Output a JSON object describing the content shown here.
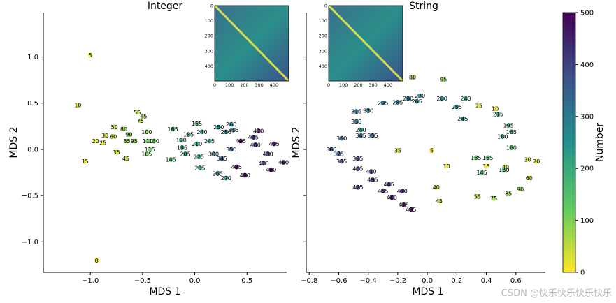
{
  "chart_data": [
    {
      "type": "scatter",
      "title": "Integer",
      "xlabel": "MDS 1",
      "ylabel": "MDS 2",
      "xlim": [
        -1.45,
        0.88
      ],
      "ylim": [
        -1.33,
        1.48
      ],
      "xticks": [
        -1.0,
        -0.5,
        0.0,
        0.5
      ],
      "xtick_labels": [
        "−1.0",
        "−0.5",
        "0.0",
        "0.5"
      ],
      "yticks": [
        -1.0,
        -0.5,
        0.0,
        0.5,
        1.0
      ],
      "ytick_labels": [
        "−1.0",
        "−0.5",
        "0.0",
        "0.5",
        "1.0"
      ],
      "point_labels": [
        {
          "x": -0.94,
          "y": -1.2,
          "label": "0"
        },
        {
          "x": -1.0,
          "y": 1.02,
          "label": "5"
        },
        {
          "x": -1.12,
          "y": 0.48,
          "label": "10"
        },
        {
          "x": -1.05,
          "y": -0.13,
          "label": "15"
        },
        {
          "x": -0.95,
          "y": 0.09,
          "label": "20"
        },
        {
          "x": -0.88,
          "y": 0.07,
          "label": "25"
        },
        {
          "x": -0.86,
          "y": 0.15,
          "label": "30"
        },
        {
          "x": -0.75,
          "y": -0.03,
          "label": "35"
        },
        {
          "x": -0.66,
          "y": -0.1,
          "label": "45"
        },
        {
          "x": -0.77,
          "y": 0.24,
          "label": "50"
        },
        {
          "x": -0.55,
          "y": 0.4,
          "label": "55"
        },
        {
          "x": -0.78,
          "y": 0.14,
          "label": "60"
        },
        {
          "x": -0.49,
          "y": 0.36,
          "label": "65"
        },
        {
          "x": -0.52,
          "y": 0.31,
          "label": "75"
        },
        {
          "x": -0.68,
          "y": 0.22,
          "label": "80"
        },
        {
          "x": -0.65,
          "y": 0.09,
          "label": "85"
        },
        {
          "x": -0.63,
          "y": 0.16,
          "label": "90"
        },
        {
          "x": -0.58,
          "y": 0.09,
          "label": "95"
        },
        {
          "x": -0.46,
          "y": 0.19,
          "label": "100"
        },
        {
          "x": -0.46,
          "y": -0.05,
          "label": "105"
        },
        {
          "x": -0.45,
          "y": 0.09,
          "label": "110"
        },
        {
          "x": -0.43,
          "y": 0.0,
          "label": "115"
        },
        {
          "x": -0.39,
          "y": 0.09,
          "label": "130"
        },
        {
          "x": -0.23,
          "y": -0.11,
          "label": "145"
        },
        {
          "x": -0.21,
          "y": 0.22,
          "label": "165"
        },
        {
          "x": 0.02,
          "y": 0.28,
          "label": "155"
        },
        {
          "x": -0.06,
          "y": 0.16,
          "label": "185"
        },
        {
          "x": -0.13,
          "y": 0.1,
          "label": "190"
        },
        {
          "x": -0.12,
          "y": 0.02,
          "label": "195"
        },
        {
          "x": 0.02,
          "y": 0.06,
          "label": "210"
        },
        {
          "x": -0.09,
          "y": -0.05,
          "label": "205"
        },
        {
          "x": 0.07,
          "y": 0.19,
          "label": "240"
        },
        {
          "x": 0.14,
          "y": 0.09,
          "label": "245"
        },
        {
          "x": 0.23,
          "y": 0.24,
          "label": "250"
        },
        {
          "x": 0.35,
          "y": 0.27,
          "label": "260"
        },
        {
          "x": 0.3,
          "y": 0.19,
          "label": "280"
        },
        {
          "x": 0.37,
          "y": 0.21,
          "label": "315"
        },
        {
          "x": 0.04,
          "y": -0.08,
          "label": "225"
        },
        {
          "x": 0.05,
          "y": -0.2,
          "label": "235"
        },
        {
          "x": 0.22,
          "y": -0.26,
          "label": "265"
        },
        {
          "x": 0.3,
          "y": -0.31,
          "label": "270"
        },
        {
          "x": 0.18,
          "y": -0.05,
          "label": "300"
        },
        {
          "x": 0.26,
          "y": -0.1,
          "label": "345"
        },
        {
          "x": 0.35,
          "y": 0.0,
          "label": "350"
        },
        {
          "x": 0.4,
          "y": -0.19,
          "label": "485"
        },
        {
          "x": 0.48,
          "y": -0.28,
          "label": "490"
        },
        {
          "x": 0.44,
          "y": 0.09,
          "label": "495"
        },
        {
          "x": 0.56,
          "y": 0.13,
          "label": "445"
        },
        {
          "x": 0.61,
          "y": 0.2,
          "label": "470"
        },
        {
          "x": 0.58,
          "y": 0.05,
          "label": "400"
        },
        {
          "x": 0.7,
          "y": -0.05,
          "label": "430"
        },
        {
          "x": 0.66,
          "y": -0.15,
          "label": "410"
        },
        {
          "x": 0.76,
          "y": 0.06,
          "label": "475"
        },
        {
          "x": 0.73,
          "y": -0.22,
          "label": "480"
        },
        {
          "x": 0.85,
          "y": -0.14,
          "label": "460"
        }
      ],
      "inset": {
        "xticks": [
          "0",
          "100",
          "200",
          "300",
          "400"
        ],
        "yticks": [
          "0",
          "100",
          "200",
          "300",
          "400"
        ]
      }
    },
    {
      "type": "scatter",
      "title": "String",
      "xlabel": "MDS 1",
      "ylabel": "MDS 2",
      "xlim": [
        -0.82,
        0.8
      ],
      "ylim": [
        -1.33,
        1.48
      ],
      "xticks": [
        -0.8,
        -0.6,
        -0.4,
        -0.2,
        0.0,
        0.2,
        0.4,
        0.6
      ],
      "xtick_labels": [
        "−0.8",
        "−0.6",
        "−0.4",
        "−0.2",
        "0.0",
        "0.2",
        "0.4",
        "0.6"
      ],
      "point_labels": [
        {
          "x": -0.1,
          "y": 0.78,
          "label": "80"
        },
        {
          "x": 0.11,
          "y": 0.76,
          "label": "95"
        },
        {
          "x": -0.2,
          "y": -0.01,
          "label": "35"
        },
        {
          "x": 0.03,
          "y": -0.01,
          "label": "5"
        },
        {
          "x": 0.13,
          "y": -0.18,
          "label": "10"
        },
        {
          "x": 0.4,
          "y": -0.18,
          "label": "15"
        },
        {
          "x": 0.53,
          "y": -0.19,
          "label": "40"
        },
        {
          "x": 0.68,
          "y": -0.11,
          "label": "30"
        },
        {
          "x": 0.74,
          "y": -0.13,
          "label": "20"
        },
        {
          "x": 0.69,
          "y": -0.31,
          "label": "60"
        },
        {
          "x": 0.63,
          "y": -0.43,
          "label": "90"
        },
        {
          "x": 0.55,
          "y": -0.48,
          "label": "85"
        },
        {
          "x": 0.45,
          "y": -0.53,
          "label": "75"
        },
        {
          "x": 0.34,
          "y": -0.51,
          "label": "55"
        },
        {
          "x": 0.06,
          "y": -0.41,
          "label": "40"
        },
        {
          "x": 0.08,
          "y": -0.56,
          "label": "45"
        },
        {
          "x": -0.13,
          "y": 0.55,
          "label": "290"
        },
        {
          "x": -0.2,
          "y": 0.51,
          "label": "285"
        },
        {
          "x": -0.05,
          "y": 0.58,
          "label": "270"
        },
        {
          "x": -0.3,
          "y": 0.5,
          "label": "295"
        },
        {
          "x": -0.07,
          "y": 0.52,
          "label": "265"
        },
        {
          "x": 0.1,
          "y": 0.55,
          "label": "260"
        },
        {
          "x": 0.26,
          "y": 0.55,
          "label": "240"
        },
        {
          "x": 0.2,
          "y": 0.46,
          "label": "255"
        },
        {
          "x": 0.35,
          "y": 0.47,
          "label": "25"
        },
        {
          "x": 0.46,
          "y": 0.44,
          "label": "10"
        },
        {
          "x": 0.48,
          "y": 0.38,
          "label": "215"
        },
        {
          "x": 0.24,
          "y": 0.33,
          "label": "245"
        },
        {
          "x": 0.55,
          "y": 0.26,
          "label": "195"
        },
        {
          "x": 0.57,
          "y": 0.19,
          "label": "165"
        },
        {
          "x": 0.51,
          "y": 0.14,
          "label": "180"
        },
        {
          "x": 0.57,
          "y": 0.02,
          "label": "160"
        },
        {
          "x": 0.41,
          "y": -0.09,
          "label": "155"
        },
        {
          "x": 0.33,
          "y": -0.09,
          "label": "135"
        },
        {
          "x": 0.37,
          "y": -0.25,
          "label": "145"
        },
        {
          "x": 0.52,
          "y": -0.22,
          "label": "150"
        },
        {
          "x": -0.4,
          "y": 0.42,
          "label": "320"
        },
        {
          "x": -0.48,
          "y": 0.3,
          "label": "335"
        },
        {
          "x": -0.48,
          "y": 0.41,
          "label": "315"
        },
        {
          "x": -0.45,
          "y": 0.21,
          "label": "240"
        },
        {
          "x": -0.45,
          "y": 0.15,
          "label": "345"
        },
        {
          "x": -0.37,
          "y": 0.15,
          "label": "355"
        },
        {
          "x": -0.58,
          "y": 0.12,
          "label": "360"
        },
        {
          "x": -0.65,
          "y": 0.0,
          "label": "365"
        },
        {
          "x": -0.6,
          "y": -0.05,
          "label": "375"
        },
        {
          "x": -0.58,
          "y": -0.13,
          "label": "385"
        },
        {
          "x": -0.47,
          "y": -0.1,
          "label": "395"
        },
        {
          "x": -0.47,
          "y": -0.21,
          "label": "405"
        },
        {
          "x": -0.38,
          "y": -0.24,
          "label": "410"
        },
        {
          "x": -0.37,
          "y": -0.33,
          "label": "435"
        },
        {
          "x": -0.26,
          "y": -0.38,
          "label": "445"
        },
        {
          "x": -0.3,
          "y": -0.45,
          "label": "455"
        },
        {
          "x": -0.47,
          "y": -0.41,
          "label": "425"
        },
        {
          "x": -0.17,
          "y": -0.45,
          "label": "470"
        },
        {
          "x": -0.24,
          "y": -0.52,
          "label": "460"
        },
        {
          "x": -0.16,
          "y": -0.6,
          "label": "475"
        },
        {
          "x": -0.11,
          "y": -0.65,
          "label": "495"
        }
      ],
      "inset": {
        "xticks": [
          "0",
          "100",
          "200",
          "300",
          "400"
        ],
        "yticks": [
          "0",
          "100",
          "200",
          "300",
          "400"
        ]
      }
    }
  ],
  "colorbar": {
    "label": "Number",
    "min": 0,
    "max": 500,
    "ticks": [
      "0",
      "100",
      "200",
      "300",
      "400",
      "500"
    ]
  },
  "watermark": "CSDN @快乐快乐快乐快乐"
}
